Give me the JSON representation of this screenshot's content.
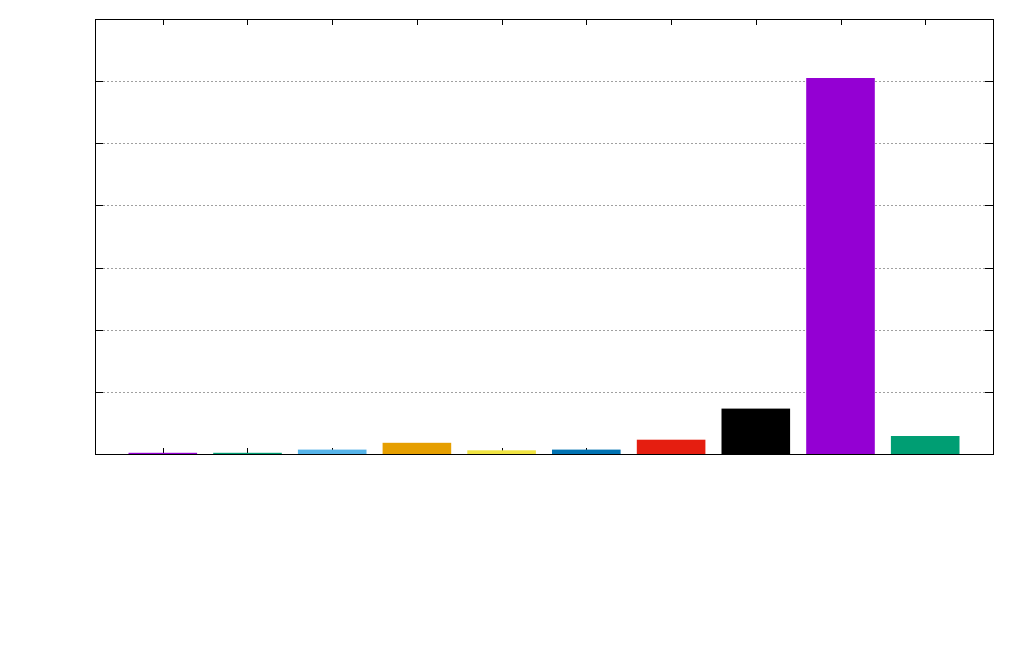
{
  "chart_data": {
    "type": "bar",
    "title": "",
    "xlabel": "",
    "ylabel": "",
    "ylim": [
      0,
      7
    ],
    "yticks": [
      0,
      1,
      2,
      3,
      4,
      5,
      6,
      7
    ],
    "grid": true,
    "grid_axis": "y",
    "legend": "none",
    "tick_labels_visible": false,
    "categories": [
      "",
      "",
      "",
      "",
      "",
      "",
      "",
      "",
      "",
      ""
    ],
    "values": [
      0.02,
      0.02,
      0.07,
      0.18,
      0.06,
      0.07,
      0.23,
      0.73,
      6.05,
      0.29
    ],
    "colors": [
      "#9400d3",
      "#009e73",
      "#56b4e9",
      "#e69f00",
      "#f0e442",
      "#0072b2",
      "#e51e10",
      "#000000",
      "#9400d3",
      "#009e73"
    ]
  }
}
